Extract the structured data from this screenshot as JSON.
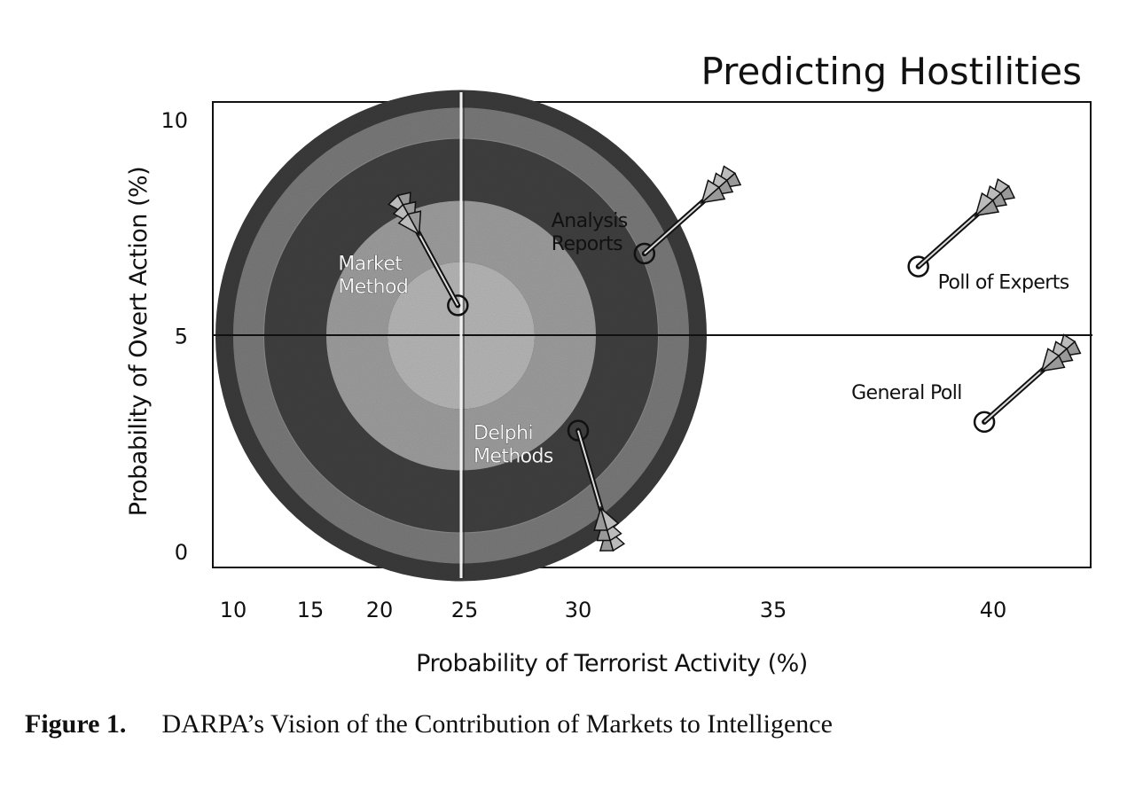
{
  "chart_data": {
    "type": "scatter",
    "title": "Predicting Hostilities",
    "xlabel": "Probability of Terrorist Activity (%)",
    "ylabel": "Probability of Overt Action (%)",
    "xticks": [
      10,
      15,
      20,
      25,
      30,
      35,
      40
    ],
    "yticks": [
      0,
      5,
      10
    ],
    "xlim": [
      10,
      43
    ],
    "ylim": [
      0,
      10
    ],
    "grid": false,
    "legend": "none",
    "target": {
      "center_x": 25,
      "center_y": 5,
      "ring_colors": [
        "#3a3a3a",
        "#8a8a8a",
        "#3f3f3f",
        "#9c9c9c",
        "#1c1c1c",
        "#b4b4b4"
      ]
    },
    "points": [
      {
        "label": "Market Method",
        "lines": [
          "Market",
          "Method"
        ],
        "x": 24.6,
        "y": 5.7
      },
      {
        "label": "Analysis Reports",
        "lines": [
          "Analysis",
          "Reports"
        ],
        "x": 31.7,
        "y": 6.9
      },
      {
        "label": "Poll of Experts",
        "lines": [
          "Poll of Experts"
        ],
        "x": 38.3,
        "y": 6.6
      },
      {
        "label": "General Poll",
        "lines": [
          "General Poll"
        ],
        "x": 39.8,
        "y": 3.0
      },
      {
        "label": "Delphi Methods",
        "lines": [
          "Delphi",
          "Methods"
        ],
        "x": 30.0,
        "y": 2.8
      }
    ]
  },
  "caption": {
    "label": "Figure 1.",
    "text": "DARPA’s Vision of the Contribution of Markets to Intelligence"
  }
}
